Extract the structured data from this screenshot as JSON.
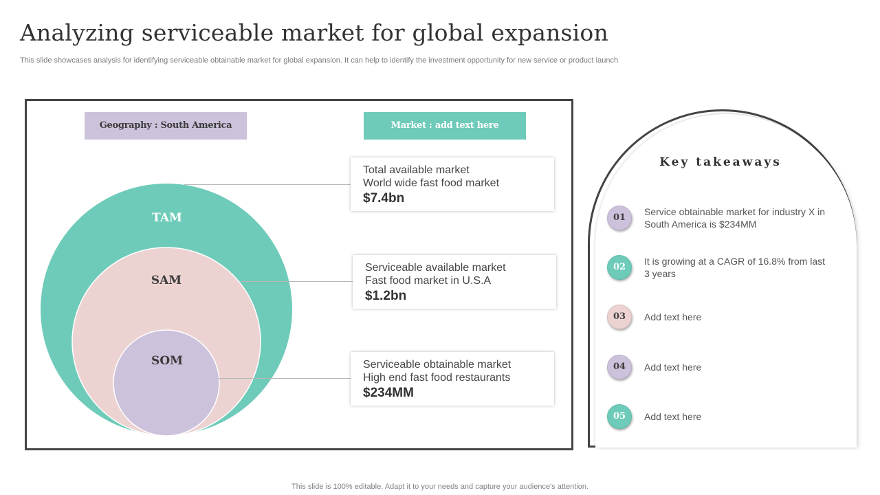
{
  "header": {
    "title": "Analyzing serviceable market for global expansion",
    "subtitle": "This slide showcases analysis for identifying serviceable obtainable market for global expansion. It can help to identify the investment opportunity for new service or product launch"
  },
  "tags": {
    "geography": "Geography : South America",
    "market": "Market : add text here"
  },
  "venn": {
    "tam_label": "TAM",
    "sam_label": "SAM",
    "som_label": "SOM",
    "colors": {
      "tam": "#6ecbb9",
      "sam": "#ecd3d2",
      "som": "#cdc2dc"
    }
  },
  "markets": [
    {
      "line1": "Total available market",
      "line2": "World wide fast food market",
      "value": "$7.4bn"
    },
    {
      "line1": "Serviceable available market",
      "line2": "Fast food market in U.S.A",
      "value": "$1.2bn"
    },
    {
      "line1": "Serviceable obtainable market",
      "line2": "High end fast food restaurants",
      "value": "$234MM"
    }
  ],
  "takeaways": {
    "title": "Key takeaways",
    "items": [
      {
        "number": "01",
        "text": "Service obtainable market for industry X in South America is $234MM"
      },
      {
        "number": "02",
        "text": "It is growing at a CAGR of 16.8% from last 3 years"
      },
      {
        "number": "03",
        "text": "Add text here"
      },
      {
        "number": "04",
        "text": "Add text here"
      },
      {
        "number": "05",
        "text": "Add text here"
      }
    ]
  },
  "footer": "This slide is 100% editable. Adapt it to your needs and capture your audience's attention."
}
